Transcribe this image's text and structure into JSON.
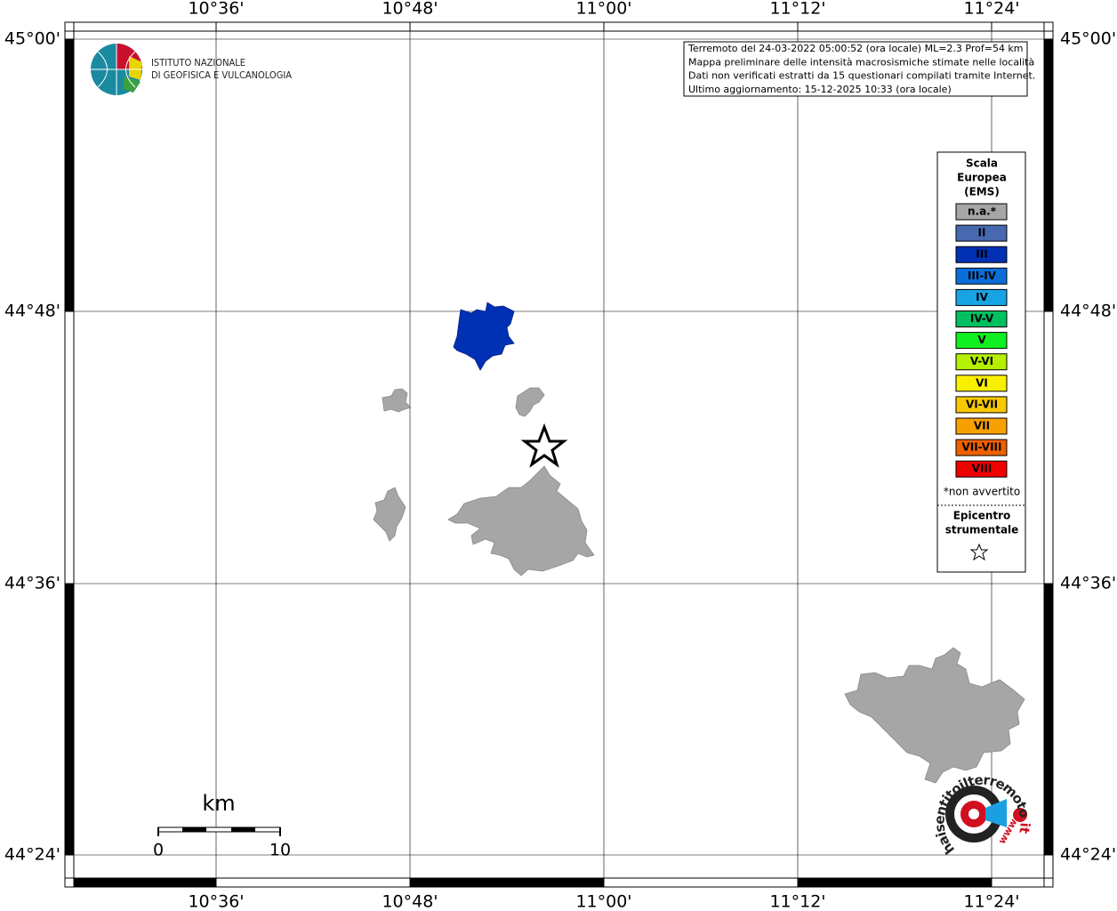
{
  "map": {
    "lon_labels": [
      "10°36'",
      "10°48'",
      "11°00'",
      "11°12'",
      "11°24'"
    ],
    "lat_labels": [
      "45°00'",
      "44°48'",
      "44°36'",
      "44°24'"
    ],
    "logo": {
      "line1": "ISTITUTO NAZIONALE",
      "line2": "DI GEOFISICA E VULCANOLOGIA"
    },
    "info": [
      "Terremoto del 24-03-2022 05:00:52 (ora locale) ML=2.3 Prof=54 km",
      "Mappa preliminare delle intensità macrosismiche stimate nelle località",
      "Dati non verificati estratti da 15 questionari compilati tramite Internet.",
      "Ultimo aggiornamento: 15-12-2025 10:33 (ora locale)"
    ],
    "legend": {
      "title": [
        "Scala",
        "Europea",
        "(EMS)"
      ],
      "items": [
        {
          "label": "n.a.*",
          "color": "#a6a6a6",
          "text_color": "#ffffff"
        },
        {
          "label": "II",
          "color": "#4868b0",
          "text_color": "#ffffff"
        },
        {
          "label": "III",
          "color": "#0030b4",
          "text_color": "#ffffff"
        },
        {
          "label": "III-IV",
          "color": "#0a6ed8",
          "text_color": "#ffffff"
        },
        {
          "label": "IV",
          "color": "#18a4e4",
          "text_color": "#ffffff"
        },
        {
          "label": "IV-V",
          "color": "#00c060",
          "text_color": "#000000"
        },
        {
          "label": "V",
          "color": "#10f020",
          "text_color": "#000000"
        },
        {
          "label": "V-VI",
          "color": "#b4f000",
          "text_color": "#000000"
        },
        {
          "label": "VI",
          "color": "#f8f000",
          "text_color": "#000000"
        },
        {
          "label": "VI-VII",
          "color": "#f8c800",
          "text_color": "#000000"
        },
        {
          "label": "VII",
          "color": "#f8a000",
          "text_color": "#000000"
        },
        {
          "label": "VII-VIII",
          "color": "#f06000",
          "text_color": "#000000"
        },
        {
          "label": "VIII",
          "color": "#f00000",
          "text_color": "#000000"
        }
      ],
      "note": "*non avvertito",
      "epicenter": [
        "Epicentro",
        "strumentale"
      ]
    },
    "scale": {
      "unit": "km",
      "start": "0",
      "end": "10"
    },
    "site": {
      "name": "haisentitoilterremoto",
      "tld": ".it",
      "www": "www."
    }
  }
}
